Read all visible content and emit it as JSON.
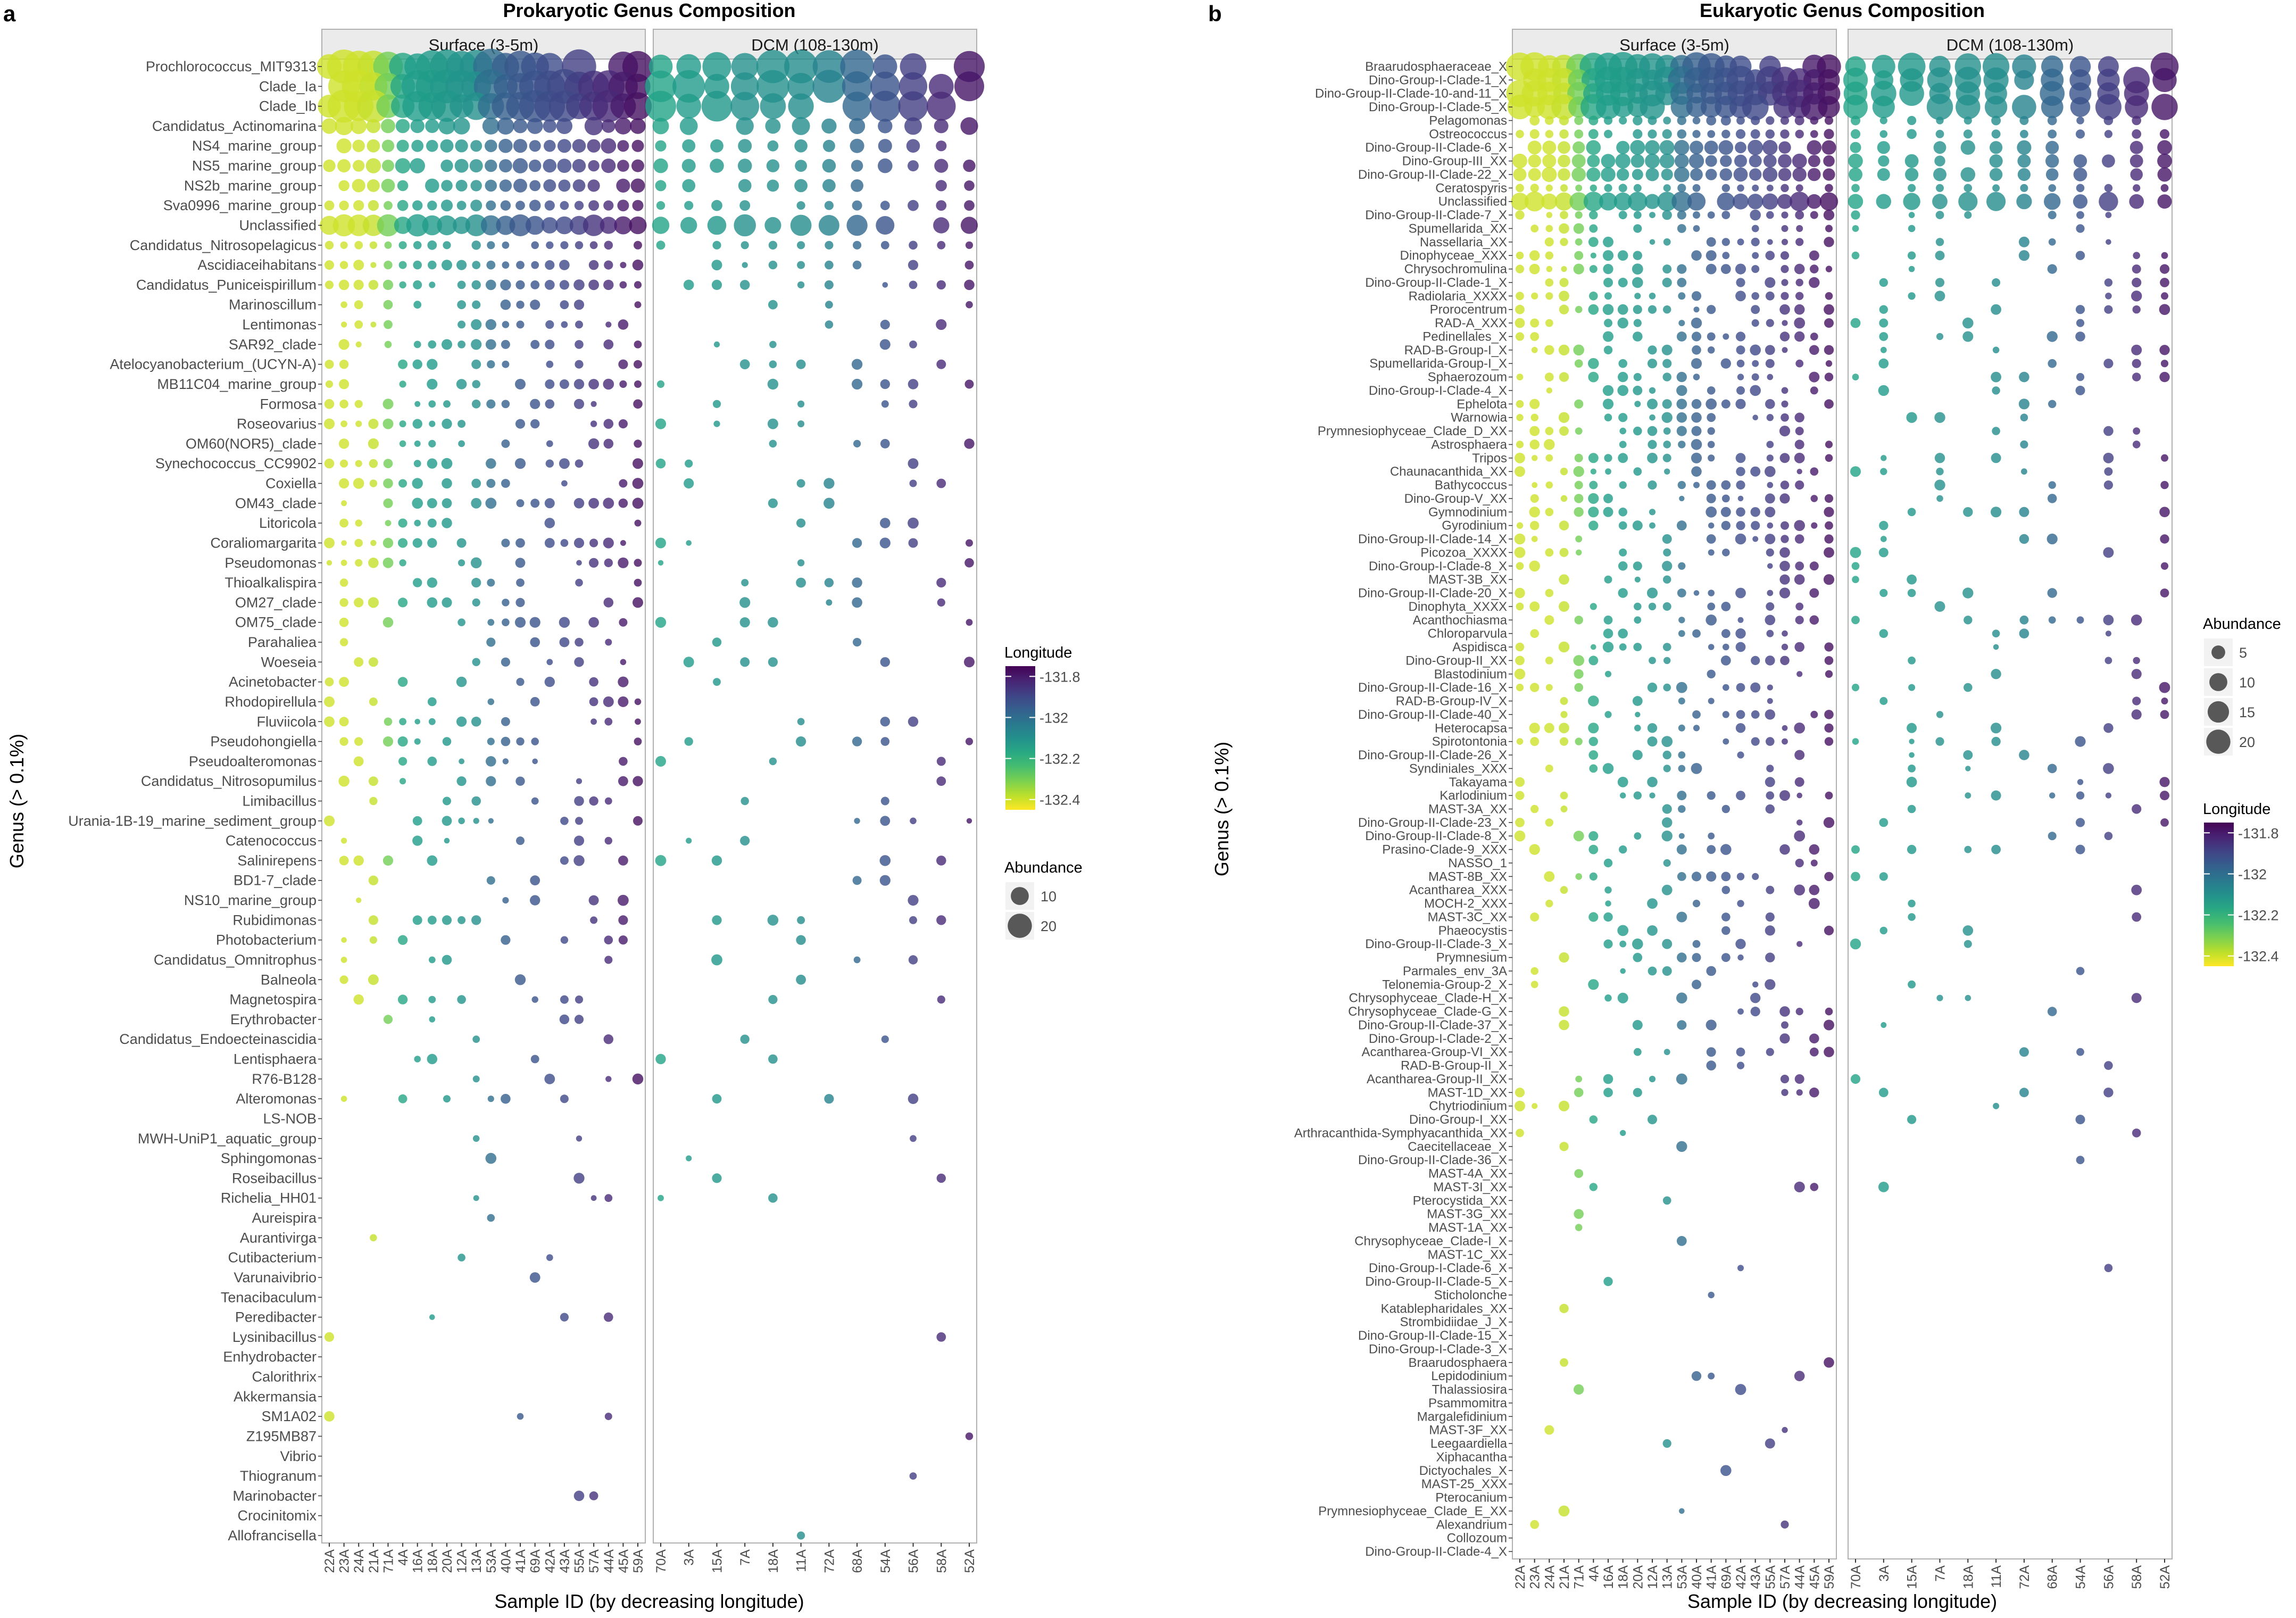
{
  "panels_meta": {
    "a": {
      "letter": "a",
      "title": "Prokaryotic Genus Composition"
    },
    "b": {
      "letter": "b",
      "title": "Eukaryotic Genus Composition"
    }
  },
  "facets": [
    "Surface (3-5m)",
    "DCM (108-130m)"
  ],
  "axes": {
    "x_label": "Sample ID (by decreasing longitude)",
    "y_label": "Genus (> 0.1%)"
  },
  "colors": {
    "low_lon": "#fde725",
    "mid_lon": "#21918c",
    "high_lon": "#440154",
    "strip_bg": "#ebebeb",
    "strip_border": "#b0b0b0"
  },
  "chart_data": [
    {
      "type": "scatter",
      "panel": "a",
      "title": "Prokaryotic Genus Composition",
      "xlabel": "Sample ID (by decreasing longitude)",
      "ylabel": "Genus (> 0.1%)",
      "facets": [
        {
          "name": "Surface (3-5m)",
          "samples": [
            "22A",
            "23A",
            "24A",
            "21A",
            "71A",
            "4A",
            "16A",
            "18A",
            "20A",
            "12A",
            "13A",
            "53A",
            "40A",
            "41A",
            "69A",
            "42A",
            "43A",
            "55A",
            "57A",
            "44A",
            "45A",
            "59A"
          ]
        },
        {
          "name": "DCM (108-130m)",
          "samples": [
            "70A",
            "3A",
            "15A",
            "7A",
            "18A",
            "11A",
            "72A",
            "68A",
            "54A",
            "56A",
            "58A",
            "52A"
          ]
        }
      ],
      "longitude_legend": {
        "title": "Longitude",
        "ticks": [
          -131.8,
          -132.0,
          -132.2,
          -132.4
        ],
        "range": [
          -132.45,
          -131.75
        ]
      },
      "abundance_legend": {
        "title": "Abundance",
        "values": [
          10,
          20
        ]
      },
      "genera": [
        "Prochlorococcus_MIT9313",
        "Clade_Ia",
        "Clade_Ib",
        "Candidatus_Actinomarina",
        "NS4_marine_group",
        "NS5_marine_group",
        "NS2b_marine_group",
        "Sva0996_marine_group",
        "Unclassified",
        "Candidatus_Nitrosopelagicus",
        "Ascidiaceihabitans",
        "Candidatus_Puniceispirillum",
        "Marinoscillum",
        "Lentimonas",
        "SAR92_clade",
        "Atelocyanobacterium_(UCYN-A)",
        "MB11C04_marine_group",
        "Formosa",
        "Roseovarius",
        "OM60(NOR5)_clade",
        "Synechococcus_CC9902",
        "Coxiella",
        "OM43_clade",
        "Litoricola",
        "Coraliomargarita",
        "Pseudomonas",
        "Thioalkalispira",
        "OM27_clade",
        "OM75_clade",
        "Parahaliea",
        "Woeseia",
        "Acinetobacter",
        "Rhodopirellula",
        "Fluviicola",
        "Pseudohongiella",
        "Pseudoalteromonas",
        "Candidatus_Nitrosopumilus",
        "Limibacillus",
        "Urania-1B-19_marine_sediment_group",
        "Catenococcus",
        "Salinirepens",
        "BD1-7_clade",
        "NS10_marine_group",
        "Rubidimonas",
        "Photobacterium",
        "Candidatus_Omnitrophus",
        "Balneola",
        "Magnetospira",
        "Erythrobacter",
        "Candidatus_Endoecteinascidia",
        "Lentisphaera",
        "R76-B128",
        "Alteromonas",
        "LS-NOB",
        "MWH-UniP1_aquatic_group",
        "Sphingomonas",
        "Roseibacillus",
        "Richelia_HH01",
        "Aureispira",
        "Aurantivirga",
        "Cutibacterium",
        "Varunaivibrio",
        "Tenacibaculum",
        "Peredibacter",
        "Lysinibacillus",
        "Enhydrobacter",
        "Calorithrix",
        "Akkermansia",
        "SM1A02",
        "Z195MB87",
        "Vibrio",
        "Thiogranum",
        "Marinobacter",
        "Crocinitomix",
        "Allofrancisella"
      ],
      "top_abundances": [
        22,
        20,
        18,
        5,
        3,
        3,
        2.5,
        1.5,
        8,
        0.8
      ]
    },
    {
      "type": "scatter",
      "panel": "b",
      "title": "Eukaryotic Genus Composition",
      "xlabel": "Sample ID (by decreasing longitude)",
      "ylabel": "Genus (> 0.1%)",
      "facets": [
        {
          "name": "Surface (3-5m)",
          "samples": [
            "22A",
            "23A",
            "24A",
            "21A",
            "71A",
            "4A",
            "16A",
            "18A",
            "20A",
            "12A",
            "13A",
            "53A",
            "40A",
            "41A",
            "69A",
            "42A",
            "43A",
            "55A",
            "57A",
            "44A",
            "45A",
            "59A"
          ]
        },
        {
          "name": "DCM (108-130m)",
          "samples": [
            "70A",
            "3A",
            "15A",
            "7A",
            "18A",
            "11A",
            "72A",
            "68A",
            "54A",
            "56A",
            "58A",
            "52A"
          ]
        }
      ],
      "longitude_legend": {
        "title": "Longitude",
        "ticks": [
          -131.8,
          -132.0,
          -132.2,
          -132.4
        ],
        "range": [
          -132.45,
          -131.75
        ]
      },
      "abundance_legend": {
        "title": "Abundance",
        "values": [
          5,
          10,
          15,
          20
        ]
      },
      "genera": [
        "Braarudosphaeraceae_X",
        "Dino-Group-I-Clade-1_X",
        "Dino-Group-II-Clade-10-and-11_X",
        "Dino-Group-I-Clade-5_X",
        "Pelagomonas",
        "Ostreococcus",
        "Dino-Group-II-Clade-6_X",
        "Dino-Group-III_XX",
        "Dino-Group-II-Clade-22_X",
        "Ceratospyris",
        "Unclassified",
        "Dino-Group-II-Clade-7_X",
        "Spumellarida_XX",
        "Nassellaria_XX",
        "Dinophyceae_XXX",
        "Chrysochromulina",
        "Dino-Group-II-Clade-1_X",
        "Radiolaria_XXXX",
        "Prorocentrum",
        "RAD-A_XXX",
        "Pedinellales_X",
        "RAD-B-Group-I_X",
        "Spumellarida-Group-I_X",
        "Sphaerozoum",
        "Dino-Group-I-Clade-4_X",
        "Ephelota",
        "Warnowia",
        "Prymnesiophyceae_Clade_D_XX",
        "Astrosphaera",
        "Tripos",
        "Chaunacanthida_XX",
        "Bathycoccus",
        "Dino-Group-V_XX",
        "Gymnodinium",
        "Gyrodinium",
        "Dino-Group-II-Clade-14_X",
        "Picozoa_XXXX",
        "Dino-Group-I-Clade-8_X",
        "MAST-3B_XX",
        "Dino-Group-II-Clade-20_X",
        "Dinophyta_XXXX",
        "Acanthochiasma",
        "Chloroparvula",
        "Aspidisca",
        "Dino-Group-II_XX",
        "Blastodinium",
        "Dino-Group-II-Clade-16_X",
        "RAD-B-Group-IV_X",
        "Dino-Group-II-Clade-40_X",
        "Heterocapsa",
        "Spirotontonia",
        "Dino-Group-II-Clade-26_X",
        "Syndiniales_XXX",
        "Takayama",
        "Karlodinium",
        "MAST-3A_XX",
        "Dino-Group-II-Clade-23_X",
        "Dino-Group-II-Clade-8_X",
        "Prasino-Clade-9_XXX",
        "NASSO_1",
        "MAST-8B_XX",
        "Acantharea_XXX",
        "MOCH-2_XXX",
        "MAST-3C_XX",
        "Phaeocystis",
        "Dino-Group-II-Clade-3_X",
        "Prymnesium",
        "Parmales_env_3A",
        "Telonemia-Group-2_X",
        "Chrysophyceae_Clade-H_X",
        "Chrysophyceae_Clade-G_X",
        "Dino-Group-II-Clade-37_X",
        "Dino-Group-I-Clade-2_X",
        "Acantharea-Group-VI_XX",
        "RAD-B-Group-II_X",
        "Acantharea-Group-II_XX",
        "MAST-1D_XX",
        "Chytriodinium",
        "Dino-Group-I_XX",
        "Arthracanthida-Symphyacanthida_XX",
        "Caecitellaceae_X",
        "Dino-Group-II-Clade-36_X",
        "MAST-4A_XX",
        "MAST-3I_XX",
        "Pterocystida_XX",
        "MAST-3G_XX",
        "MAST-1A_XX",
        "Chrysophyceae_Clade-I_X",
        "MAST-1C_XX",
        "Dino-Group-I-Clade-6_X",
        "Dino-Group-II-Clade-5_X",
        "Sticholonche",
        "Katablepharidales_XX",
        "Strombidiidae_J_X",
        "Dino-Group-II-Clade-15_X",
        "Dino-Group-I-Clade-3_X",
        "Braarudosphaera",
        "Lepidodinium",
        "Thalassiosira",
        "Psammomitra",
        "Margalefidinium",
        "MAST-3F_XX",
        "Leegaardiella",
        "Xiphacantha",
        "Dictyochales_X",
        "MAST-25_XXX",
        "Pterocanium",
        "Prymnesiophyceae_Clade_E_XX",
        "Alexandrium",
        "Collozoum",
        "Dino-Group-II-Clade-4_X"
      ],
      "top_abundances": [
        14,
        13,
        12,
        12,
        1,
        1,
        3,
        3,
        3,
        0.6,
        6
      ]
    }
  ]
}
